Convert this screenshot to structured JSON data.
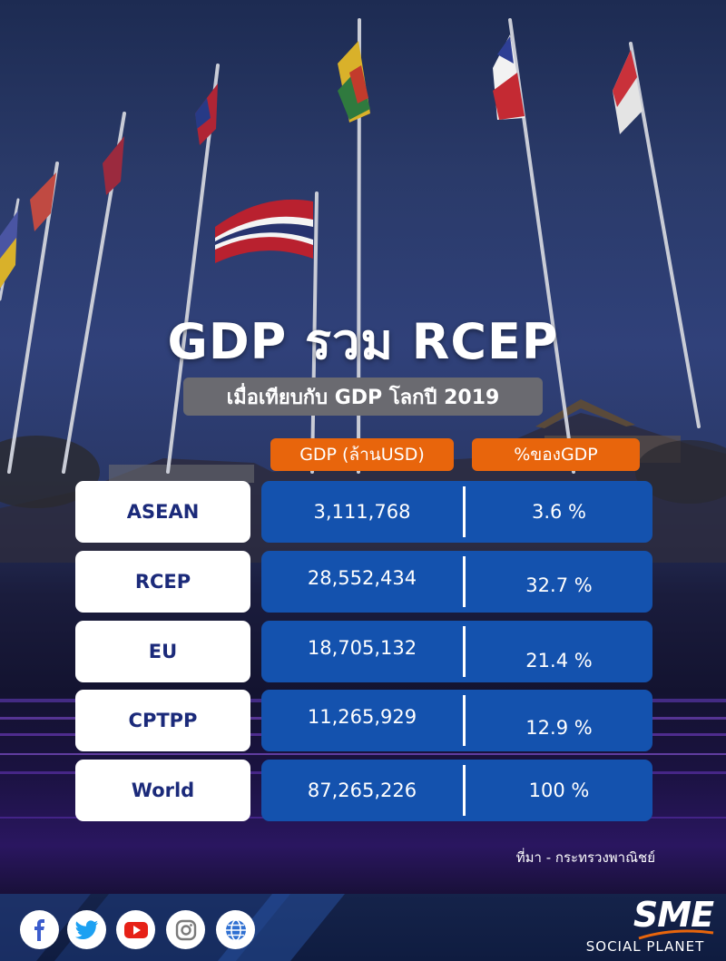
{
  "title": "GDP รวม RCEP",
  "subtitle": "เมื่อเทียบกับ GDP โลกปี 2019",
  "columns": {
    "gdp": "GDP (ล้านUSD)",
    "pct": "%ของGDP"
  },
  "source": "ที่มา - กระทรวงพาณิชย์",
  "brand": {
    "name": "SME",
    "tagline": "SOCIAL PLANET"
  },
  "social_icons": [
    "facebook-icon",
    "twitter-icon",
    "youtube-icon",
    "instagram-icon",
    "globe-icon"
  ],
  "colors": {
    "header_orange": "#e8650c",
    "value_blue": "#1452ae",
    "label_text": "#1b2a7a"
  },
  "chart_data": {
    "type": "table",
    "columns": [
      "GDP (ล้านUSD)",
      "%ของGDP"
    ],
    "rows": [
      {
        "label": "ASEAN",
        "gdp": "3,111,768",
        "pct": "3.6 %",
        "gdp_value": 3111768,
        "pct_value": 3.6
      },
      {
        "label": "RCEP",
        "gdp": "28,552,434",
        "pct": "32.7 %",
        "gdp_value": 28552434,
        "pct_value": 32.7
      },
      {
        "label": "EU",
        "gdp": "18,705,132",
        "pct": "21.4 %",
        "gdp_value": 18705132,
        "pct_value": 21.4
      },
      {
        "label": "CPTPP",
        "gdp": "11,265,929",
        "pct": "12.9 %",
        "gdp_value": 11265929,
        "pct_value": 12.9
      },
      {
        "label": "World",
        "gdp": "87,265,226",
        "pct": "100 %",
        "gdp_value": 87265226,
        "pct_value": 100
      }
    ]
  }
}
